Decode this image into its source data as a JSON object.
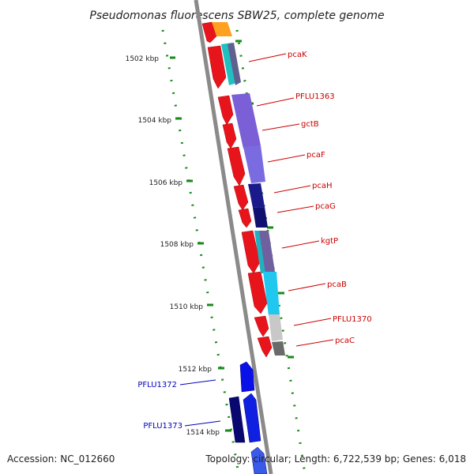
{
  "title": "Pseudomonas fluorescens SBW25, complete genome",
  "footer": {
    "accession": "Accession: NC_012660",
    "summary": "Topology: circular; Length: 6,722,539 bp; Genes: 6,018"
  },
  "colors": {
    "forward_label": "#cc0000",
    "reverse_label": "#0000bb",
    "backbone": "#8c8c8c",
    "tick": "#008800"
  },
  "kbp_labels": [
    "1502 kbp",
    "1504 kbp",
    "1506 kbp",
    "1508 kbp",
    "1510 kbp",
    "1512 kbp",
    "1514 kbp"
  ],
  "gene_labels": [
    {
      "name": "pcaK",
      "strand": "forward"
    },
    {
      "name": "PFLU1363",
      "strand": "forward"
    },
    {
      "name": "gctB",
      "strand": "forward"
    },
    {
      "name": "pcaF",
      "strand": "forward"
    },
    {
      "name": "pcaH",
      "strand": "forward"
    },
    {
      "name": "pcaG",
      "strand": "forward"
    },
    {
      "name": "kgtP",
      "strand": "forward"
    },
    {
      "name": "pcaB",
      "strand": "forward"
    },
    {
      "name": "PFLU1370",
      "strand": "forward"
    },
    {
      "name": "pcaC",
      "strand": "forward"
    },
    {
      "name": "PFLU1372",
      "strand": "reverse"
    },
    {
      "name": "PFLU1373",
      "strand": "reverse"
    }
  ]
}
